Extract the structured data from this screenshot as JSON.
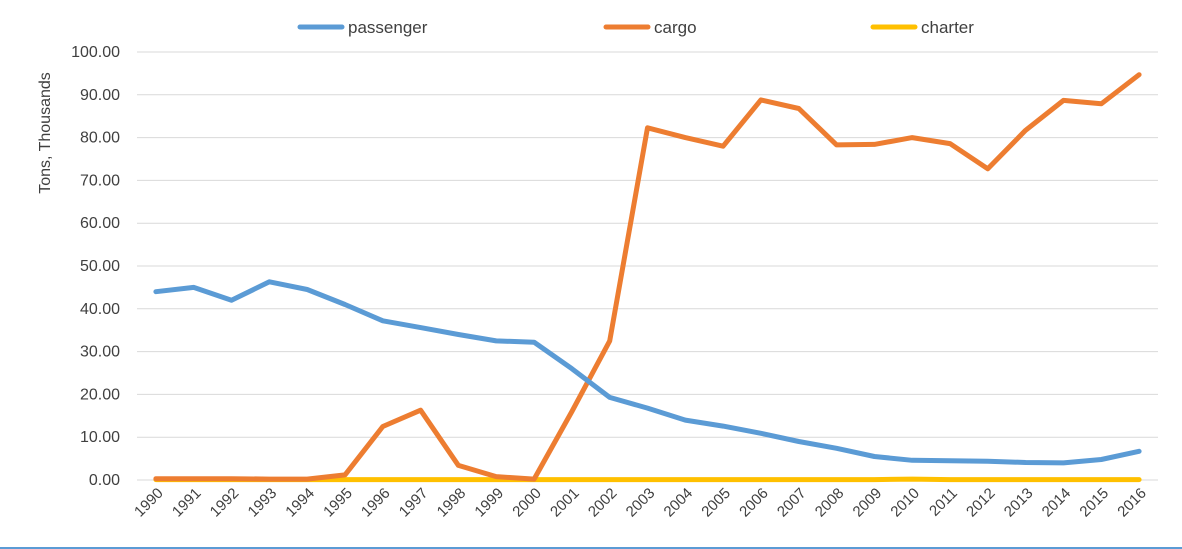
{
  "chart_data": {
    "type": "line",
    "title": "",
    "xlabel": "",
    "ylabel": "Tons, Thousands",
    "ylim": [
      0,
      100
    ],
    "ytick_values": [
      0,
      10,
      20,
      30,
      40,
      50,
      60,
      70,
      80,
      90,
      100
    ],
    "ytick_labels": [
      "0.00",
      "10.00",
      "20.00",
      "30.00",
      "40.00",
      "50.00",
      "60.00",
      "70.00",
      "80.00",
      "90.00",
      "100.00"
    ],
    "categories": [
      "1990",
      "1991",
      "1992",
      "1993",
      "1994",
      "1995",
      "1996",
      "1997",
      "1998",
      "1999",
      "2000",
      "2001",
      "2002",
      "2003",
      "2004",
      "2005",
      "2006",
      "2007",
      "2008",
      "2009",
      "2010",
      "2011",
      "2012",
      "2013",
      "2014",
      "2015",
      "2016"
    ],
    "grid": true,
    "legend_position": "top",
    "series": [
      {
        "name": "passenger",
        "color": "#5b9bd5",
        "values": [
          44.0,
          45.0,
          42.0,
          46.3,
          44.5,
          41.0,
          37.2,
          35.6,
          34.0,
          32.5,
          32.2,
          26.0,
          19.3,
          16.8,
          14.0,
          12.6,
          10.9,
          9.0,
          7.4,
          5.5,
          4.6,
          4.5,
          4.4,
          4.1,
          4.0,
          4.8,
          6.7
        ]
      },
      {
        "name": "cargo",
        "color": "#ed7d31",
        "values": [
          0.3,
          0.3,
          0.3,
          0.2,
          0.2,
          1.2,
          12.5,
          16.3,
          3.4,
          0.8,
          0.2,
          16.0,
          32.5,
          82.3,
          80.0,
          78.0,
          88.8,
          86.8,
          78.3,
          78.4,
          80.0,
          78.6,
          72.7,
          81.7,
          88.7,
          87.9,
          94.7
        ]
      },
      {
        "name": "charter",
        "color": "#ffc000",
        "values": [
          0.1,
          0.1,
          0.1,
          0.1,
          0.1,
          0.1,
          0.1,
          0.1,
          0.1,
          0.1,
          0.1,
          0.1,
          0.1,
          0.1,
          0.1,
          0.1,
          0.1,
          0.1,
          0.1,
          0.1,
          0.2,
          0.1,
          0.1,
          0.1,
          0.1,
          0.1,
          0.1
        ]
      }
    ]
  }
}
